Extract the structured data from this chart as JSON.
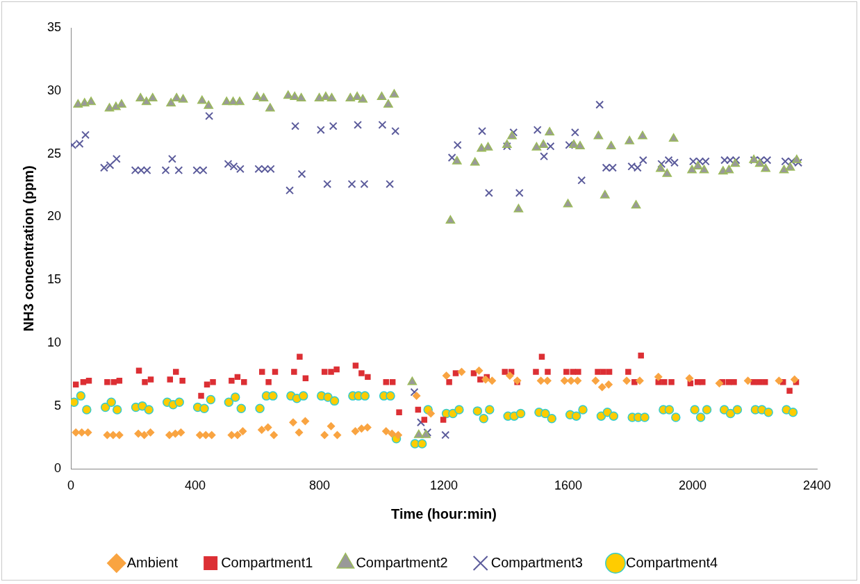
{
  "chart_data": {
    "type": "scatter",
    "xlabel": "Time (hour:min)",
    "ylabel": "NH3 concentration (ppm)",
    "xlim": [
      0,
      2400
    ],
    "xticks": [
      0,
      400,
      800,
      1200,
      1600,
      2000,
      2400
    ],
    "ylim": [
      0,
      35
    ],
    "yticks": [
      0,
      5,
      10,
      15,
      20,
      25,
      30,
      35
    ],
    "grid": false,
    "legend": "bottom",
    "series": [
      {
        "name": "Ambient",
        "color": "#f9a441",
        "marker": "diamond",
        "x": [
          16,
          35,
          55,
          117,
          136,
          156,
          217,
          236,
          256,
          317,
          336,
          354,
          415,
          434,
          453,
          517,
          536,
          553,
          614,
          634,
          653,
          715,
          734,
          754,
          816,
          837,
          857,
          915,
          935,
          954,
          1014,
          1033,
          1053,
          1112,
          1158,
          1208,
          1257,
          1313,
          1334,
          1355,
          1412,
          1436,
          1512,
          1533,
          1588,
          1609,
          1630,
          1688,
          1709,
          1730,
          1788,
          1830,
          1890,
          1990,
          2086,
          2178,
          2278,
          2328
        ],
        "values": [
          2.9,
          2.9,
          2.9,
          2.7,
          2.7,
          2.7,
          2.8,
          2.7,
          2.9,
          2.7,
          2.8,
          2.9,
          2.7,
          2.7,
          2.7,
          2.7,
          2.7,
          3.0,
          3.1,
          3.3,
          2.7,
          3.7,
          2.9,
          3.8,
          2.7,
          3.4,
          2.7,
          3.0,
          3.2,
          3.3,
          3.0,
          2.8,
          2.7,
          5.8,
          4.4,
          7.4,
          7.7,
          7.8,
          7.1,
          7.0,
          7.4,
          7.0,
          7.0,
          7.0,
          7.0,
          7.0,
          7.0,
          7.0,
          6.5,
          6.7,
          7.0,
          7.0,
          7.3,
          7.2,
          6.8,
          7.0,
          7.0,
          7.1
        ]
      },
      {
        "name": "Compartment1",
        "color": "#dc2f34",
        "marker": "square",
        "x": [
          16,
          40,
          58,
          117,
          138,
          156,
          219,
          238,
          257,
          319,
          338,
          359,
          419,
          438,
          457,
          517,
          536,
          557,
          615,
          636,
          657,
          718,
          736,
          755,
          816,
          837,
          855,
          916,
          935,
          955,
          1014,
          1035,
          1056,
          1117,
          1137,
          1198,
          1217,
          1238,
          1296,
          1317,
          1338,
          1396,
          1417,
          1436,
          1496,
          1515,
          1534,
          1594,
          1615,
          1632,
          1695,
          1713,
          1732,
          1793,
          1813,
          1834,
          1890,
          1909,
          1932,
          1993,
          2016,
          2032,
          2096,
          2116,
          2133,
          2196,
          2214,
          2233,
          2291,
          2312,
          2333
        ],
        "values": [
          6.7,
          6.9,
          7.0,
          6.9,
          6.9,
          7.0,
          7.8,
          6.9,
          7.1,
          7.1,
          7.7,
          7.0,
          5.8,
          6.7,
          6.9,
          7.0,
          7.3,
          6.9,
          7.7,
          6.9,
          7.7,
          7.7,
          8.9,
          7.2,
          7.7,
          7.7,
          7.9,
          8.2,
          7.6,
          7.3,
          6.9,
          6.9,
          4.5,
          4.7,
          3.9,
          3.9,
          6.9,
          7.6,
          7.6,
          7.1,
          7.3,
          7.7,
          7.7,
          6.9,
          7.7,
          8.9,
          7.7,
          7.7,
          7.7,
          7.7,
          7.7,
          7.7,
          7.7,
          7.7,
          6.9,
          9.0,
          6.9,
          6.9,
          6.9,
          6.8,
          6.9,
          6.9,
          6.9,
          6.9,
          6.9,
          6.9,
          6.9,
          6.9,
          6.9,
          6.2,
          6.9
        ]
      },
      {
        "name": "Compartment2",
        "color": "#999999",
        "marker": "triangle",
        "x": [
          23,
          44,
          65,
          124,
          145,
          163,
          224,
          243,
          263,
          322,
          340,
          361,
          422,
          443,
          501,
          522,
          543,
          599,
          620,
          641,
          699,
          720,
          741,
          799,
          820,
          839,
          899,
          921,
          939,
          1000,
          1021,
          1040,
          1098,
          1119,
          1142,
          1221,
          1242,
          1300,
          1321,
          1342,
          1403,
          1419,
          1440,
          1498,
          1520,
          1540,
          1599,
          1618,
          1638,
          1697,
          1718,
          1738,
          1797,
          1818,
          1839,
          1897,
          1918,
          1939,
          1998,
          2017,
          2037,
          2098,
          2117,
          2137,
          2197,
          2216,
          2235,
          2294,
          2314,
          2335
        ],
        "values": [
          28.9,
          29.0,
          29.1,
          28.6,
          28.7,
          28.9,
          29.4,
          29.1,
          29.4,
          29.0,
          29.4,
          29.3,
          29.2,
          28.8,
          29.1,
          29.1,
          29.1,
          29.5,
          29.4,
          28.6,
          29.6,
          29.5,
          29.4,
          29.4,
          29.5,
          29.4,
          29.4,
          29.5,
          29.3,
          29.5,
          28.9,
          29.7,
          6.9,
          2.7,
          2.7,
          19.7,
          24.4,
          24.3,
          25.4,
          25.5,
          25.7,
          26.4,
          20.6,
          25.5,
          25.7,
          26.7,
          21.0,
          25.7,
          25.6,
          26.4,
          21.7,
          25.6,
          26.0,
          20.9,
          26.4,
          23.8,
          23.4,
          26.2,
          23.7,
          24.0,
          23.7,
          23.6,
          23.7,
          24.2,
          24.5,
          24.2,
          23.8,
          23.7,
          23.9,
          24.5
        ]
      },
      {
        "name": "Compartment3",
        "color": "#5b5b9b",
        "marker": "cross",
        "x": [
          5,
          28,
          47,
          107,
          126,
          147,
          207,
          226,
          245,
          305,
          326,
          347,
          405,
          426,
          445,
          506,
          524,
          545,
          604,
          624,
          643,
          704,
          722,
          743,
          804,
          825,
          844,
          904,
          923,
          944,
          1002,
          1026,
          1044,
          1105,
          1126,
          1147,
          1205,
          1226,
          1244,
          1323,
          1345,
          1403,
          1424,
          1443,
          1501,
          1522,
          1543,
          1603,
          1622,
          1643,
          1701,
          1722,
          1743,
          1804,
          1823,
          1841,
          1900,
          1923,
          1942,
          2002,
          2023,
          2042,
          2103,
          2121,
          2140,
          2198,
          2219,
          2240,
          2298,
          2319,
          2340
        ],
        "values": [
          25.7,
          25.8,
          26.5,
          23.9,
          24.1,
          24.6,
          23.7,
          23.7,
          23.7,
          23.7,
          24.6,
          23.7,
          23.7,
          23.7,
          28.0,
          24.2,
          24.0,
          23.8,
          23.8,
          23.8,
          23.8,
          22.1,
          27.2,
          23.4,
          26.9,
          22.6,
          27.2,
          22.6,
          27.3,
          22.6,
          27.3,
          22.6,
          26.8,
          6.1,
          3.7,
          2.9,
          2.7,
          24.7,
          25.7,
          26.8,
          21.9,
          25.6,
          26.7,
          21.9,
          26.9,
          24.8,
          25.6,
          25.7,
          26.7,
          22.9,
          28.9,
          23.9,
          23.9,
          24.0,
          23.9,
          24.5,
          24.2,
          24.5,
          24.3,
          24.4,
          24.4,
          24.4,
          24.5,
          24.5,
          24.5,
          24.5,
          24.5,
          24.5,
          24.4,
          24.4,
          24.3
        ]
      },
      {
        "name": "Compartment4",
        "color": "#ffcc00",
        "marker": "circle",
        "x": [
          10,
          32,
          51,
          111,
          130,
          149,
          209,
          230,
          251,
          310,
          329,
          349,
          408,
          429,
          450,
          508,
          529,
          548,
          608,
          629,
          650,
          708,
          727,
          748,
          806,
          827,
          848,
          907,
          925,
          946,
          1007,
          1028,
          1047,
          1107,
          1130,
          1149,
          1208,
          1229,
          1249,
          1308,
          1328,
          1347,
          1406,
          1426,
          1447,
          1506,
          1526,
          1547,
          1606,
          1626,
          1647,
          1706,
          1726,
          1746,
          1806,
          1825,
          1846,
          1906,
          1925,
          1946,
          2007,
          2026,
          2046,
          2102,
          2122,
          2144,
          2202,
          2223,
          2244,
          2302,
          2323
        ],
        "values": [
          5.3,
          5.8,
          4.7,
          4.9,
          5.3,
          4.7,
          4.9,
          5.0,
          4.7,
          5.3,
          5.1,
          5.3,
          4.9,
          4.8,
          5.5,
          5.3,
          5.7,
          4.8,
          4.8,
          5.8,
          5.8,
          5.8,
          5.6,
          5.8,
          5.8,
          5.7,
          5.4,
          5.8,
          5.8,
          5.8,
          5.8,
          5.8,
          2.4,
          2.0,
          2.0,
          4.7,
          4.4,
          4.4,
          4.7,
          4.6,
          4.0,
          4.7,
          4.2,
          4.2,
          4.4,
          4.5,
          4.4,
          4.0,
          4.3,
          4.2,
          4.7,
          4.2,
          4.5,
          4.2,
          4.1,
          4.1,
          4.1,
          4.7,
          4.7,
          4.1,
          4.7,
          4.1,
          4.7,
          4.7,
          4.4,
          4.7,
          4.7,
          4.7,
          4.5,
          4.7,
          4.5
        ]
      }
    ]
  }
}
